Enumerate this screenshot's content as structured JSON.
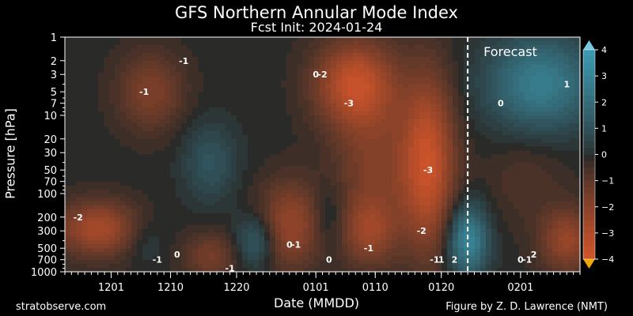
{
  "chart_data": {
    "type": "heatmap",
    "title": "GFS Northern Annular Mode Index",
    "subtitle": "Fcst Init: 2024-01-24",
    "xlabel": "Date (MMDD)",
    "ylabel": "Pressure [hPa]",
    "x_tick_labels": [
      "1201",
      "1210",
      "1220",
      "0101",
      "0110",
      "0120",
      "0201"
    ],
    "x_range": [
      "1124",
      "0210"
    ],
    "y_scale": "log",
    "y_range": [
      1000,
      1
    ],
    "y_ticks": [
      1,
      2,
      3,
      5,
      7,
      10,
      20,
      30,
      50,
      70,
      100,
      200,
      300,
      500,
      700,
      1000
    ],
    "y_tick_labels": [
      "1",
      "2",
      "3",
      "5",
      "7",
      "10",
      "20",
      "30",
      "50",
      "70",
      "100",
      "200",
      "300",
      "500",
      "700",
      "1000"
    ],
    "color_range": [
      -4,
      4
    ],
    "colorbar_ticks": [
      "4",
      "3",
      "2",
      "1",
      "0",
      "−1",
      "−2",
      "−3",
      "−4"
    ],
    "colorbar_values": [
      4,
      3,
      2,
      1,
      0,
      -1,
      -2,
      -3,
      -4
    ],
    "forecast_start": "0124",
    "forecast_label": "Forecast",
    "contour_labels": [
      {
        "text": "-2",
        "date": "1126",
        "p": 200
      },
      {
        "text": "-1",
        "date": "1206",
        "p": 5
      },
      {
        "text": "-1",
        "date": "1212",
        "p": 2
      },
      {
        "text": "-1",
        "date": "1208",
        "p": 700
      },
      {
        "text": "0",
        "date": "1211",
        "p": 600
      },
      {
        "text": "-1",
        "date": "1219",
        "p": 900
      },
      {
        "text": "0",
        "date": "1228",
        "p": 450
      },
      {
        "text": "-1",
        "date": "1229",
        "p": 450
      },
      {
        "text": "0",
        "date": "0101",
        "p": 3
      },
      {
        "text": "-2",
        "date": "0102",
        "p": 3
      },
      {
        "text": "-3",
        "date": "0106",
        "p": 7
      },
      {
        "text": "0",
        "date": "0103",
        "p": 700
      },
      {
        "text": "-1",
        "date": "0109",
        "p": 500
      },
      {
        "text": "-3",
        "date": "0118",
        "p": 50
      },
      {
        "text": "-2",
        "date": "0117",
        "p": 300
      },
      {
        "text": "-1",
        "date": "0119",
        "p": 700
      },
      {
        "text": "1",
        "date": "0120",
        "p": 700
      },
      {
        "text": "2",
        "date": "0122",
        "p": 700
      },
      {
        "text": "0",
        "date": "0129",
        "p": 7
      },
      {
        "text": "1",
        "date": "0208",
        "p": 4
      },
      {
        "text": "0",
        "date": "0201",
        "p": 700
      },
      {
        "text": "-1",
        "date": "0202",
        "p": 700
      },
      {
        "text": "2",
        "date": "0203",
        "p": 600
      }
    ]
  },
  "footer": {
    "left_credit": "stratobserve.com",
    "right_credit": "Figure by Z. D. Lawrence (NMT)"
  },
  "colors": {
    "positive": "#3b98b0",
    "neutral": "#2a2a28",
    "negative": "#d6562a",
    "min_extend": "#f0a800",
    "max_extend": "#7ac8e0"
  }
}
